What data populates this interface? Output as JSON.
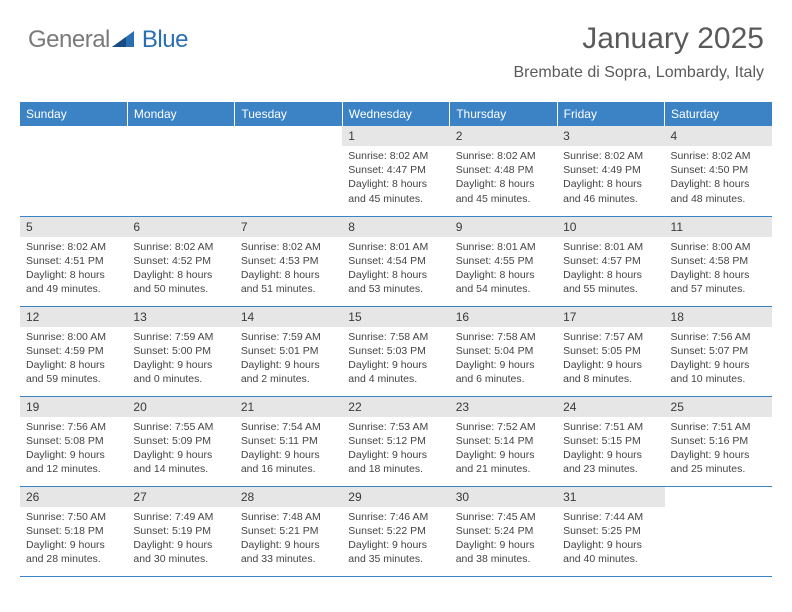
{
  "logo": {
    "general": "General",
    "blue": "Blue"
  },
  "title": "January 2025",
  "location": "Brembate di Sopra, Lombardy, Italy",
  "colors": {
    "header_bg": "#3b83c5",
    "header_text": "#ffffff",
    "daynum_bg": "#e6e6e6",
    "body_text": "#444444",
    "rule": "#3d7ab0",
    "logo_gray": "#7a7a7a",
    "logo_blue": "#2b6fb3"
  },
  "weekdays": [
    "Sunday",
    "Monday",
    "Tuesday",
    "Wednesday",
    "Thursday",
    "Friday",
    "Saturday"
  ],
  "weeks": [
    [
      null,
      null,
      null,
      {
        "num": "1",
        "sunrise": "Sunrise: 8:02 AM",
        "sunset": "Sunset: 4:47 PM",
        "day1": "Daylight: 8 hours",
        "day2": "and 45 minutes."
      },
      {
        "num": "2",
        "sunrise": "Sunrise: 8:02 AM",
        "sunset": "Sunset: 4:48 PM",
        "day1": "Daylight: 8 hours",
        "day2": "and 45 minutes."
      },
      {
        "num": "3",
        "sunrise": "Sunrise: 8:02 AM",
        "sunset": "Sunset: 4:49 PM",
        "day1": "Daylight: 8 hours",
        "day2": "and 46 minutes."
      },
      {
        "num": "4",
        "sunrise": "Sunrise: 8:02 AM",
        "sunset": "Sunset: 4:50 PM",
        "day1": "Daylight: 8 hours",
        "day2": "and 48 minutes."
      }
    ],
    [
      {
        "num": "5",
        "sunrise": "Sunrise: 8:02 AM",
        "sunset": "Sunset: 4:51 PM",
        "day1": "Daylight: 8 hours",
        "day2": "and 49 minutes."
      },
      {
        "num": "6",
        "sunrise": "Sunrise: 8:02 AM",
        "sunset": "Sunset: 4:52 PM",
        "day1": "Daylight: 8 hours",
        "day2": "and 50 minutes."
      },
      {
        "num": "7",
        "sunrise": "Sunrise: 8:02 AM",
        "sunset": "Sunset: 4:53 PM",
        "day1": "Daylight: 8 hours",
        "day2": "and 51 minutes."
      },
      {
        "num": "8",
        "sunrise": "Sunrise: 8:01 AM",
        "sunset": "Sunset: 4:54 PM",
        "day1": "Daylight: 8 hours",
        "day2": "and 53 minutes."
      },
      {
        "num": "9",
        "sunrise": "Sunrise: 8:01 AM",
        "sunset": "Sunset: 4:55 PM",
        "day1": "Daylight: 8 hours",
        "day2": "and 54 minutes."
      },
      {
        "num": "10",
        "sunrise": "Sunrise: 8:01 AM",
        "sunset": "Sunset: 4:57 PM",
        "day1": "Daylight: 8 hours",
        "day2": "and 55 minutes."
      },
      {
        "num": "11",
        "sunrise": "Sunrise: 8:00 AM",
        "sunset": "Sunset: 4:58 PM",
        "day1": "Daylight: 8 hours",
        "day2": "and 57 minutes."
      }
    ],
    [
      {
        "num": "12",
        "sunrise": "Sunrise: 8:00 AM",
        "sunset": "Sunset: 4:59 PM",
        "day1": "Daylight: 8 hours",
        "day2": "and 59 minutes."
      },
      {
        "num": "13",
        "sunrise": "Sunrise: 7:59 AM",
        "sunset": "Sunset: 5:00 PM",
        "day1": "Daylight: 9 hours",
        "day2": "and 0 minutes."
      },
      {
        "num": "14",
        "sunrise": "Sunrise: 7:59 AM",
        "sunset": "Sunset: 5:01 PM",
        "day1": "Daylight: 9 hours",
        "day2": "and 2 minutes."
      },
      {
        "num": "15",
        "sunrise": "Sunrise: 7:58 AM",
        "sunset": "Sunset: 5:03 PM",
        "day1": "Daylight: 9 hours",
        "day2": "and 4 minutes."
      },
      {
        "num": "16",
        "sunrise": "Sunrise: 7:58 AM",
        "sunset": "Sunset: 5:04 PM",
        "day1": "Daylight: 9 hours",
        "day2": "and 6 minutes."
      },
      {
        "num": "17",
        "sunrise": "Sunrise: 7:57 AM",
        "sunset": "Sunset: 5:05 PM",
        "day1": "Daylight: 9 hours",
        "day2": "and 8 minutes."
      },
      {
        "num": "18",
        "sunrise": "Sunrise: 7:56 AM",
        "sunset": "Sunset: 5:07 PM",
        "day1": "Daylight: 9 hours",
        "day2": "and 10 minutes."
      }
    ],
    [
      {
        "num": "19",
        "sunrise": "Sunrise: 7:56 AM",
        "sunset": "Sunset: 5:08 PM",
        "day1": "Daylight: 9 hours",
        "day2": "and 12 minutes."
      },
      {
        "num": "20",
        "sunrise": "Sunrise: 7:55 AM",
        "sunset": "Sunset: 5:09 PM",
        "day1": "Daylight: 9 hours",
        "day2": "and 14 minutes."
      },
      {
        "num": "21",
        "sunrise": "Sunrise: 7:54 AM",
        "sunset": "Sunset: 5:11 PM",
        "day1": "Daylight: 9 hours",
        "day2": "and 16 minutes."
      },
      {
        "num": "22",
        "sunrise": "Sunrise: 7:53 AM",
        "sunset": "Sunset: 5:12 PM",
        "day1": "Daylight: 9 hours",
        "day2": "and 18 minutes."
      },
      {
        "num": "23",
        "sunrise": "Sunrise: 7:52 AM",
        "sunset": "Sunset: 5:14 PM",
        "day1": "Daylight: 9 hours",
        "day2": "and 21 minutes."
      },
      {
        "num": "24",
        "sunrise": "Sunrise: 7:51 AM",
        "sunset": "Sunset: 5:15 PM",
        "day1": "Daylight: 9 hours",
        "day2": "and 23 minutes."
      },
      {
        "num": "25",
        "sunrise": "Sunrise: 7:51 AM",
        "sunset": "Sunset: 5:16 PM",
        "day1": "Daylight: 9 hours",
        "day2": "and 25 minutes."
      }
    ],
    [
      {
        "num": "26",
        "sunrise": "Sunrise: 7:50 AM",
        "sunset": "Sunset: 5:18 PM",
        "day1": "Daylight: 9 hours",
        "day2": "and 28 minutes."
      },
      {
        "num": "27",
        "sunrise": "Sunrise: 7:49 AM",
        "sunset": "Sunset: 5:19 PM",
        "day1": "Daylight: 9 hours",
        "day2": "and 30 minutes."
      },
      {
        "num": "28",
        "sunrise": "Sunrise: 7:48 AM",
        "sunset": "Sunset: 5:21 PM",
        "day1": "Daylight: 9 hours",
        "day2": "and 33 minutes."
      },
      {
        "num": "29",
        "sunrise": "Sunrise: 7:46 AM",
        "sunset": "Sunset: 5:22 PM",
        "day1": "Daylight: 9 hours",
        "day2": "and 35 minutes."
      },
      {
        "num": "30",
        "sunrise": "Sunrise: 7:45 AM",
        "sunset": "Sunset: 5:24 PM",
        "day1": "Daylight: 9 hours",
        "day2": "and 38 minutes."
      },
      {
        "num": "31",
        "sunrise": "Sunrise: 7:44 AM",
        "sunset": "Sunset: 5:25 PM",
        "day1": "Daylight: 9 hours",
        "day2": "and 40 minutes."
      },
      null
    ]
  ]
}
